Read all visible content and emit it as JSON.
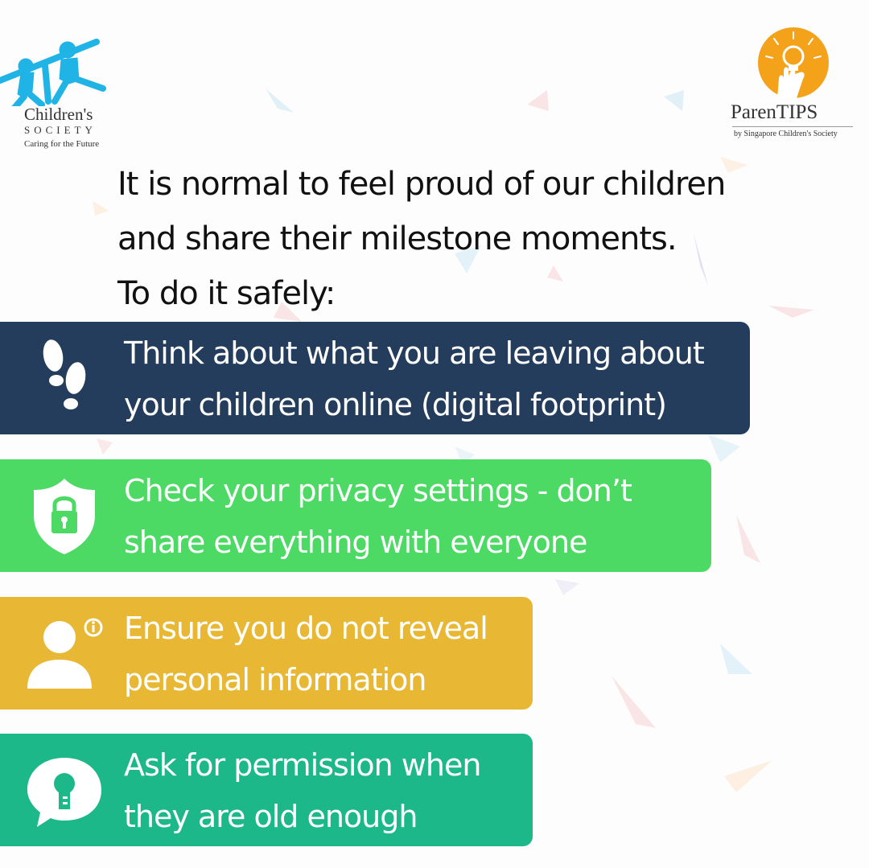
{
  "logos": {
    "left": {
      "name": "Children's",
      "society": "SOCIETY",
      "tagline": "Caring for the Future",
      "color": "#1fb3e6"
    },
    "right": {
      "name": "ParenTIPS",
      "byline": "by Singapore Children's Society",
      "color": "#f5a21b"
    }
  },
  "intro": {
    "line1": "It is normal to feel proud of our children",
    "line2": "and share their milestone moments.",
    "line3": "To do it safely:"
  },
  "tips": [
    {
      "line1": "Think about what you are leaving about",
      "line2": "your children online (digital footprint)",
      "icon": "footprints-icon",
      "color": "#243d5c"
    },
    {
      "line1": "Check your privacy settings - don’t",
      "line2": "share everything with everyone",
      "icon": "shield-lock-icon",
      "color": "#4cd964"
    },
    {
      "line1": "Ensure you do not reveal",
      "line2": "personal information",
      "icon": "person-info-icon",
      "color": "#e8b835"
    },
    {
      "line1": "Ask for permission when",
      "line2": "they are old enough",
      "icon": "keyhole-chat-icon",
      "color": "#1db88a"
    }
  ]
}
